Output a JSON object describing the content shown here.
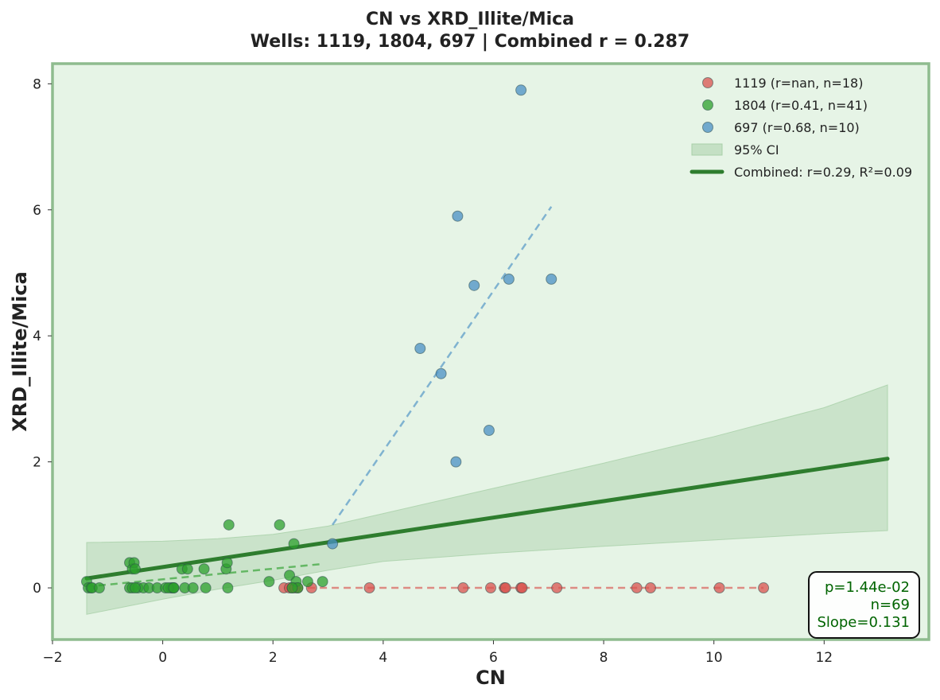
{
  "chart_data": {
    "type": "scatter",
    "title": "CN vs XRD_Illite/Mica",
    "subtitle": "Wells: 1119, 1804, 697 | Combined r = 0.287",
    "xlabel": "CN",
    "ylabel": "XRD_Illite/Mica",
    "xlim": [
      -2.0,
      13.9
    ],
    "ylim": [
      -0.82,
      8.32
    ],
    "xticks": [
      -2,
      0,
      2,
      4,
      6,
      8,
      10,
      12
    ],
    "yticks": [
      0,
      2,
      4,
      6,
      8
    ],
    "grid": false,
    "legend_position": "top-right",
    "background_color": "#e6f4e6",
    "frame_color": "#8fbc8f",
    "series": [
      {
        "name": "1119 (r=nan, n=18)",
        "color": "#d9534f",
        "points": [
          [
            2.2,
            0
          ],
          [
            2.3,
            0
          ],
          [
            2.35,
            0
          ],
          [
            2.45,
            0
          ],
          [
            2.7,
            0
          ],
          [
            3.75,
            0
          ],
          [
            5.45,
            0
          ],
          [
            5.95,
            0
          ],
          [
            6.2,
            0
          ],
          [
            6.22,
            0
          ],
          [
            6.5,
            0
          ],
          [
            6.52,
            0
          ],
          [
            7.15,
            0
          ],
          [
            8.6,
            0
          ],
          [
            8.85,
            0
          ],
          [
            10.1,
            0
          ],
          [
            10.9,
            0
          ],
          [
            2.4,
            0
          ]
        ],
        "fit": {
          "x": [
            2.2,
            10.9
          ],
          "y": [
            0,
            0
          ]
        }
      },
      {
        "name": "1804 (r=0.41, n=41)",
        "color": "#2ca02c",
        "points": [
          [
            -1.38,
            0.1
          ],
          [
            -1.35,
            0
          ],
          [
            -1.3,
            0
          ],
          [
            -1.28,
            0
          ],
          [
            -1.15,
            0
          ],
          [
            -0.6,
            0.4
          ],
          [
            -0.55,
            0.3
          ],
          [
            -0.52,
            0.4
          ],
          [
            -0.6,
            0
          ],
          [
            -0.55,
            0
          ],
          [
            -0.5,
            0.3
          ],
          [
            -0.45,
            0
          ],
          [
            -0.35,
            0
          ],
          [
            -0.25,
            0
          ],
          [
            -0.1,
            0
          ],
          [
            0.05,
            0
          ],
          [
            0.15,
            0
          ],
          [
            0.18,
            0
          ],
          [
            0.2,
            0
          ],
          [
            0.35,
            0.3
          ],
          [
            0.4,
            0
          ],
          [
            0.45,
            0.3
          ],
          [
            0.55,
            0
          ],
          [
            0.75,
            0.3
          ],
          [
            0.78,
            0
          ],
          [
            1.15,
            0.3
          ],
          [
            1.17,
            0.4
          ],
          [
            1.18,
            0
          ],
          [
            1.2,
            1.0
          ],
          [
            1.93,
            0.1
          ],
          [
            2.12,
            1.0
          ],
          [
            2.3,
            0.2
          ],
          [
            2.38,
            0.7
          ],
          [
            2.42,
            0.1
          ],
          [
            2.63,
            0.1
          ],
          [
            2.9,
            0.1
          ],
          [
            2.45,
            0
          ],
          [
            0.1,
            0
          ],
          [
            -0.5,
            0
          ],
          [
            0.2,
            0
          ],
          [
            2.35,
            0
          ]
        ],
        "fit": {
          "x": [
            -1.38,
            2.9
          ],
          "y": [
            0.02,
            0.38
          ]
        }
      },
      {
        "name": "697 (r=0.68, n=10)",
        "color": "#4a90c4",
        "points": [
          [
            3.08,
            0.7
          ],
          [
            4.67,
            3.8
          ],
          [
            5.05,
            3.4
          ],
          [
            5.32,
            2.0
          ],
          [
            5.35,
            5.9
          ],
          [
            5.65,
            4.8
          ],
          [
            5.92,
            2.5
          ],
          [
            6.28,
            4.9
          ],
          [
            6.5,
            7.9
          ],
          [
            7.05,
            4.9
          ]
        ],
        "fit": {
          "x": [
            3.08,
            7.05
          ],
          "y": [
            1.0,
            6.05
          ]
        }
      }
    ],
    "combined_fit": {
      "name": "Combined: r=0.29, R²=0.09",
      "color": "#2e7d2e",
      "x": [
        -1.38,
        13.15
      ],
      "y": [
        0.15,
        2.05
      ]
    },
    "confidence_band": {
      "name": "95% CI",
      "color": "#a8cfa8",
      "x": [
        -1.38,
        0.0,
        1.0,
        2.0,
        3.0,
        4.0,
        6.0,
        8.0,
        10.0,
        12.0,
        13.15
      ],
      "lower": [
        -0.42,
        -0.18,
        -0.02,
        0.12,
        0.28,
        0.42,
        0.55,
        0.66,
        0.76,
        0.86,
        0.91
      ],
      "upper": [
        0.72,
        0.74,
        0.78,
        0.85,
        0.98,
        1.18,
        1.58,
        1.98,
        2.4,
        2.86,
        3.22
      ]
    },
    "stats_box": [
      "p=1.44e-02",
      "n=69",
      "Slope=0.131"
    ]
  }
}
